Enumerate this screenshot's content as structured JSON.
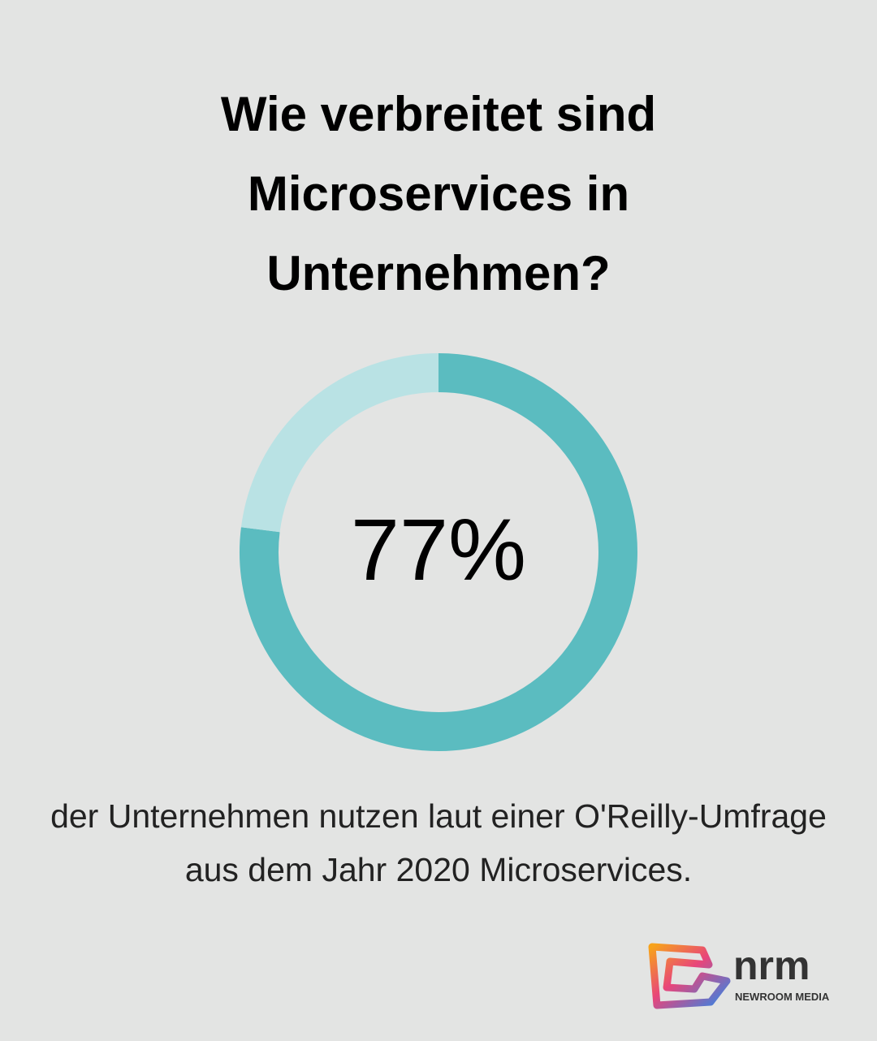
{
  "chart_data": {
    "type": "donut",
    "title": "Wie verbreitet sind Microservices in Unternehmen?",
    "values": [
      77,
      23
    ],
    "value_labels": [
      "77%",
      null
    ],
    "colors": [
      "#5bbcc0",
      "#b9e2e4"
    ],
    "caption": "der Unternehmen nutzen laut einer O'Reilly-Umfrage aus dem Jahr 2020 Microservices."
  },
  "logo": {
    "name": "nrm",
    "tagline": "NEWROOM MEDIA"
  }
}
